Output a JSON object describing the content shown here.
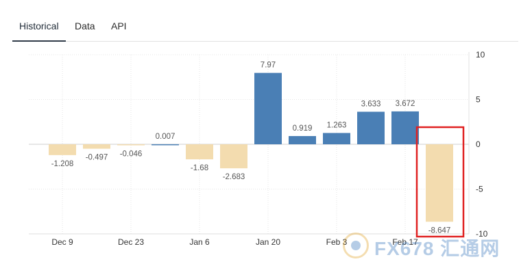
{
  "tabs": [
    {
      "label": "Historical",
      "active": true
    },
    {
      "label": "Data",
      "active": false
    },
    {
      "label": "API",
      "active": false
    }
  ],
  "watermark": {
    "text": "FX678 汇通网"
  },
  "chart_data": {
    "type": "bar",
    "title": "",
    "xlabel": "",
    "ylabel": "",
    "ylim": [
      -10,
      10
    ],
    "yticks": [
      10,
      5,
      0,
      -5,
      -10
    ],
    "xtick_labels": [
      {
        "label": "Dec 9",
        "at_bar": 0
      },
      {
        "label": "Dec 23",
        "at_bar": 2
      },
      {
        "label": "Jan 6",
        "at_bar": 4
      },
      {
        "label": "Jan 20",
        "at_bar": 6
      },
      {
        "label": "Feb 3",
        "at_bar": 8
      },
      {
        "label": "Feb 17",
        "at_bar": 10
      }
    ],
    "values": [
      -1.208,
      -0.497,
      -0.046,
      0.007,
      -1.68,
      -2.683,
      7.97,
      0.919,
      1.263,
      3.633,
      3.672,
      -8.647
    ],
    "data_labels": [
      "-1.208",
      "-0.497",
      "-0.046",
      "0.007",
      "-1.68",
      "-2.683",
      "7.97",
      "0.919",
      "1.263",
      "3.633",
      "3.672",
      "-8.647"
    ],
    "colors": {
      "positive": "#4a7fb5",
      "negative": "#f3dcaf"
    },
    "highlight_index": 11,
    "highlight_color": "#e02020",
    "grid": true
  }
}
